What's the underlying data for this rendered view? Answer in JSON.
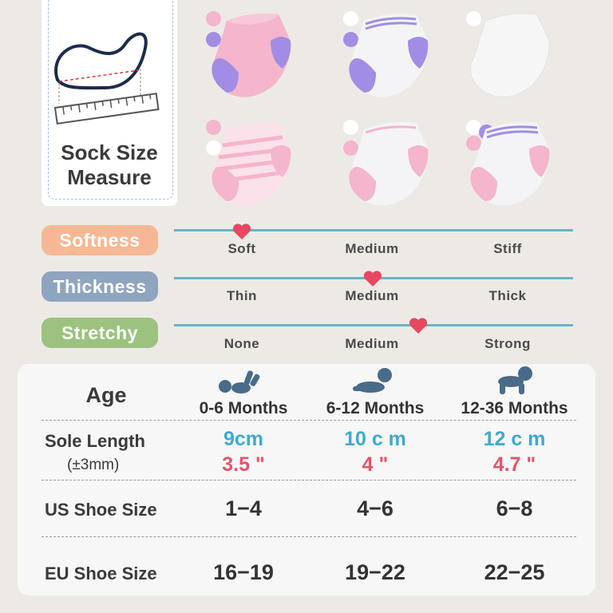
{
  "measure": {
    "title_line1": "Sock Size",
    "title_line2": "Measure"
  },
  "colors": {
    "pink": "#f4b5cd",
    "purple": "#a18de3",
    "white": "#ffffff",
    "softness": "#f6b894",
    "thickness": "#8fa4bf",
    "stretchy": "#9cc27f",
    "heart": "#e64860",
    "cm": "#3fa9d0",
    "inch": "#e4546a",
    "track": "#6cb3c7"
  },
  "scales": [
    {
      "label": "Softness",
      "levels": [
        "Soft",
        "Medium",
        "Stiff"
      ],
      "selected": "Soft"
    },
    {
      "label": "Thickness",
      "levels": [
        "Thin",
        "Medium",
        "Thick"
      ],
      "selected": "Medium"
    },
    {
      "label": "Stretchy",
      "levels": [
        "None",
        "Medium",
        "Strong"
      ],
      "selected": "Medium-Strong"
    }
  ],
  "table": {
    "age_label": "Age",
    "ages": [
      "0-6 Months",
      "6-12 Months",
      "12-36 Months"
    ],
    "sole_label": "Sole Length",
    "sole_tolerance": "(±3mm)",
    "sole_cm": [
      "9cm",
      "10 c m",
      "12 c m"
    ],
    "sole_inch": [
      "3.5 \"",
      "4 \"",
      "4.7 \""
    ],
    "us_label": "US Shoe Size",
    "us_sizes": [
      "1−4",
      "4−6",
      "6−8"
    ],
    "eu_label": "EU Shoe Size",
    "eu_sizes": [
      "16−19",
      "19−22",
      "22−25"
    ]
  }
}
